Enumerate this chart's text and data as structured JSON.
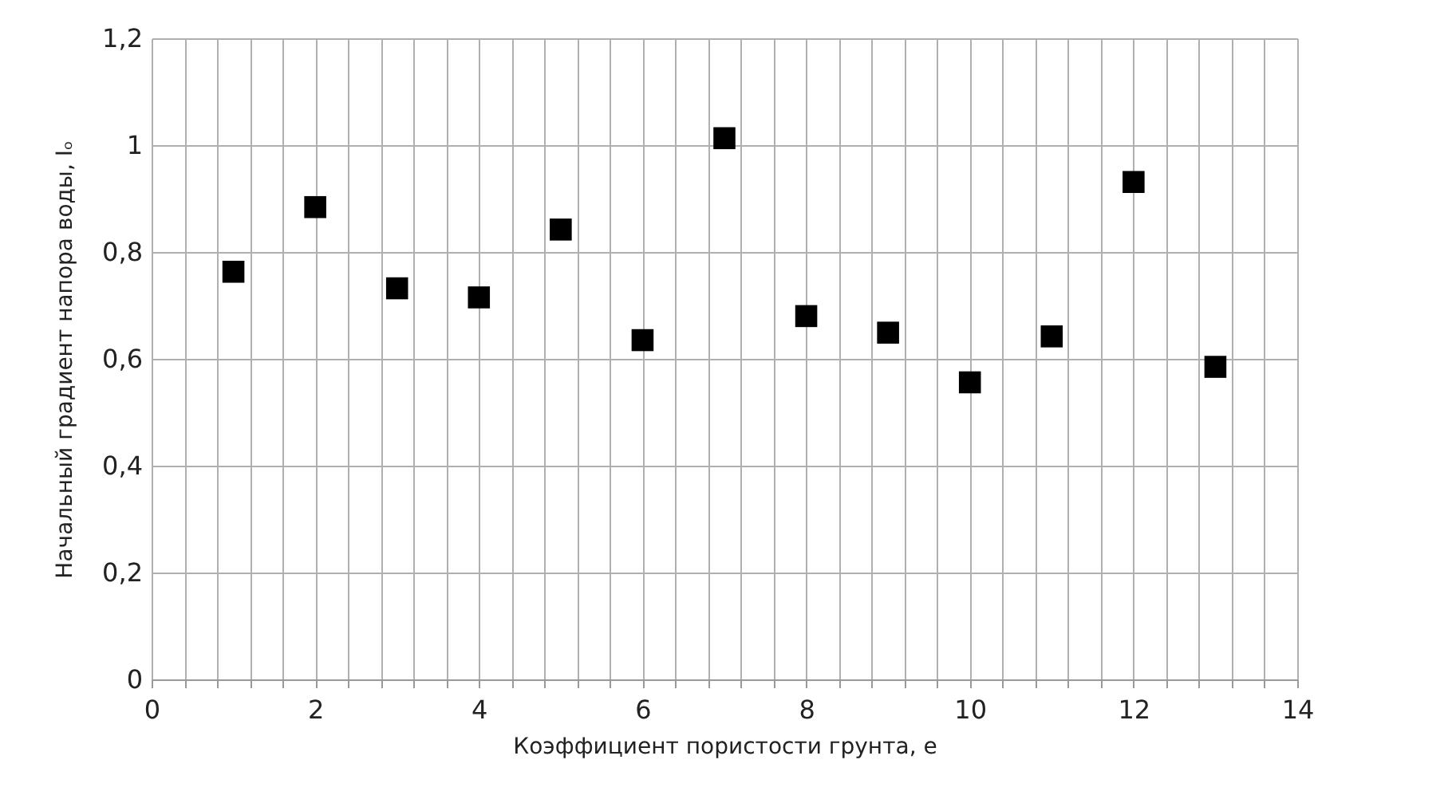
{
  "chart_data": {
    "type": "scatter",
    "xlabel": "Коэффициент пористости грунта, e",
    "ylabel": "Начальный градиент напора воды, Iₒ",
    "x": [
      1,
      2,
      3,
      4,
      5,
      6,
      7,
      8,
      9,
      10,
      11,
      12,
      13
    ],
    "series": [
      {
        "color": "#000000",
        "values": [
          0.763,
          0.884,
          0.732,
          0.715,
          0.842,
          0.635,
          1.013,
          0.68,
          0.649,
          0.556,
          0.642,
          0.931,
          0.585
        ]
      }
    ],
    "marker": "square",
    "xlim": [
      0,
      14
    ],
    "xticks": [
      0,
      {
        "value": 0.4,
        "label": null
      },
      {
        "value": 0.8,
        "label": null
      },
      {
        "value": 1.2,
        "label": null
      },
      {
        "value": 1.6,
        "label": null
      },
      2,
      {
        "value": 2.4,
        "label": null
      },
      {
        "value": 2.8,
        "label": null
      },
      {
        "value": 3.2,
        "label": null
      },
      {
        "value": 3.6,
        "label": null
      },
      4,
      {
        "value": 4.4,
        "label": null
      },
      {
        "value": 4.8,
        "label": null
      },
      {
        "value": 5.2,
        "label": null
      },
      {
        "value": 5.6,
        "label": null
      },
      6,
      {
        "value": 6.4,
        "label": null
      },
      {
        "value": 6.8,
        "label": null
      },
      {
        "value": 7.2,
        "label": null
      },
      {
        "value": 7.6,
        "label": null
      },
      8,
      {
        "value": 8.4,
        "label": null
      },
      {
        "value": 8.8,
        "label": null
      },
      {
        "value": 9.2,
        "label": null
      },
      {
        "value": 9.6,
        "label": null
      },
      10,
      {
        "value": 10.4,
        "label": null
      },
      {
        "value": 10.8,
        "label": null
      },
      {
        "value": 11.2,
        "label": null
      },
      {
        "value": 11.6,
        "label": null
      },
      12,
      {
        "value": 12.4,
        "label": null
      },
      {
        "value": 12.8,
        "label": null
      },
      {
        "value": 13.2,
        "label": null
      },
      {
        "value": 13.6,
        "label": null
      },
      14
    ],
    "ylim": [
      0,
      1.2
    ],
    "yticks": [
      0,
      {
        "value": 0.2,
        "label": "0,2"
      },
      {
        "value": 0.4,
        "label": "0,4"
      },
      {
        "value": 0.6,
        "label": "0,6"
      },
      {
        "value": 0.8,
        "label": "0,8"
      },
      1,
      {
        "value": 1.2,
        "label": "1,2"
      }
    ],
    "grid": true
  }
}
